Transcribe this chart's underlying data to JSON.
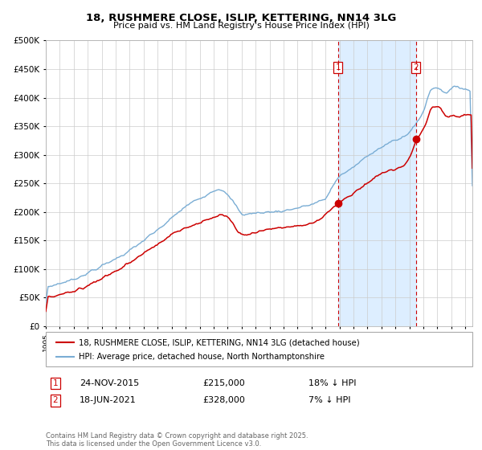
{
  "title": "18, RUSHMERE CLOSE, ISLIP, KETTERING, NN14 3LG",
  "subtitle": "Price paid vs. HM Land Registry's House Price Index (HPI)",
  "legend_entry1": "18, RUSHMERE CLOSE, ISLIP, KETTERING, NN14 3LG (detached house)",
  "legend_entry2": "HPI: Average price, detached house, North Northamptonshire",
  "transaction1_date": "24-NOV-2015",
  "transaction1_price": 215000,
  "transaction1_label": "18% ↓ HPI",
  "transaction2_date": "18-JUN-2021",
  "transaction2_price": 328000,
  "transaction2_label": "7% ↓ HPI",
  "footer": "Contains HM Land Registry data © Crown copyright and database right 2025.\nThis data is licensed under the Open Government Licence v3.0.",
  "red_color": "#cc0000",
  "blue_color": "#7aadd4",
  "background_color": "#ffffff",
  "plot_bg_color": "#ffffff",
  "shade_color": "#ddeeff",
  "grid_color": "#cccccc",
  "ylim": [
    0,
    500000
  ],
  "year_start": 1995,
  "year_end": 2025,
  "transaction1_year": 2015.9,
  "transaction2_year": 2021.46
}
